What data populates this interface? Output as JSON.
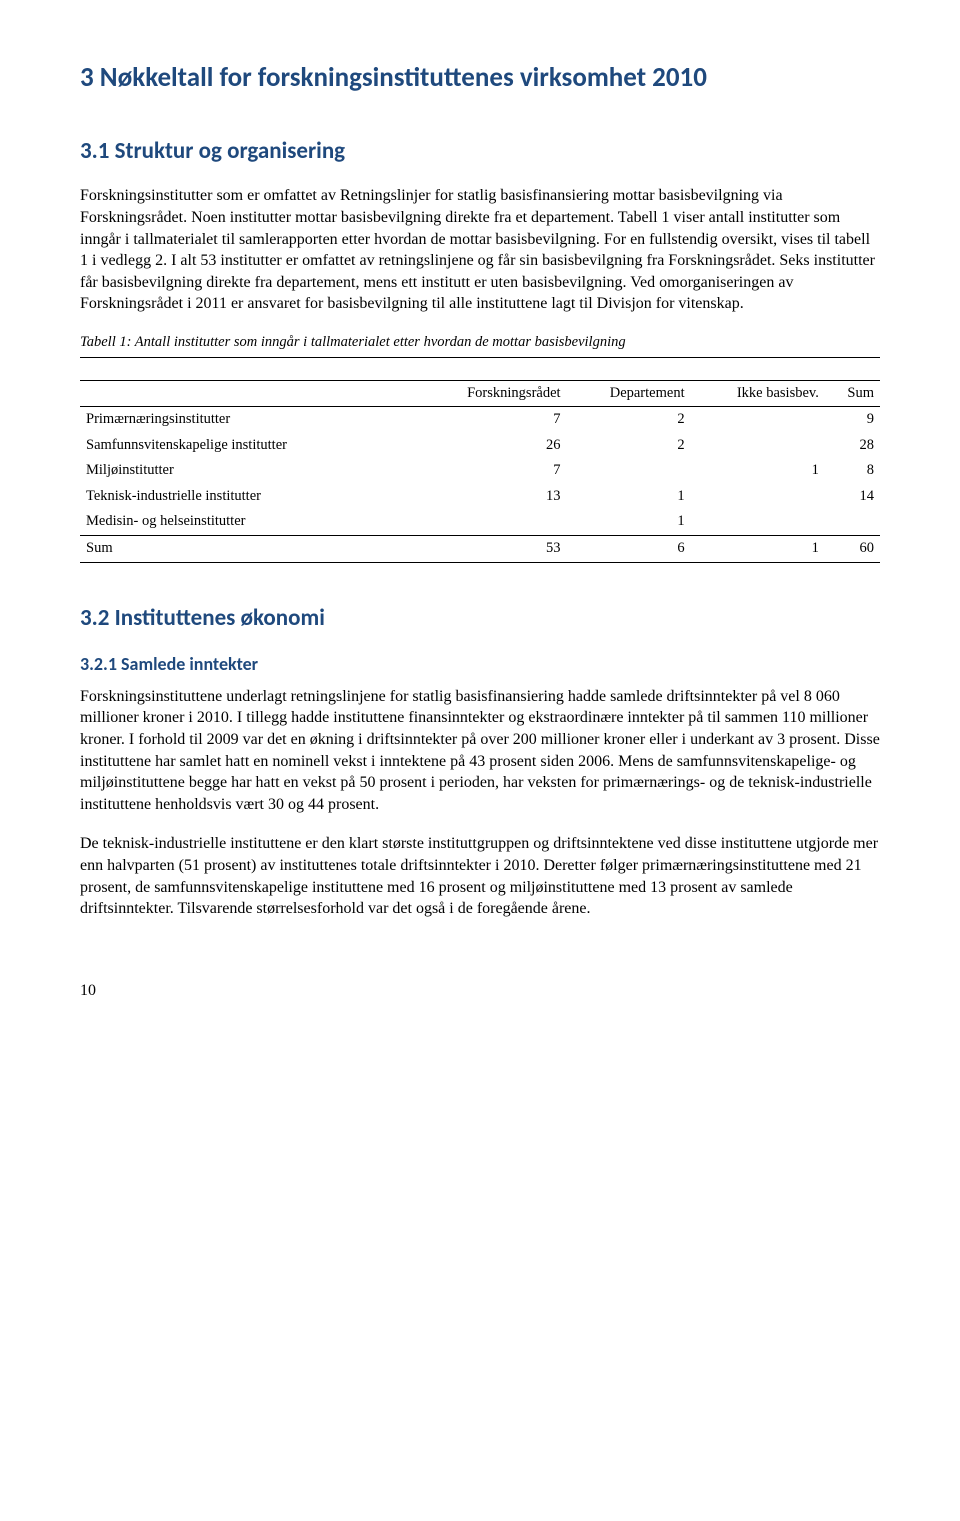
{
  "h1": "3   Nøkkeltall for forskningsinstituttenes virksomhet 2010",
  "h2_struktur": "3.1   Struktur og organisering",
  "para1": "Forskningsinstitutter som er omfattet av Retningslinjer for statlig basisfinansiering mottar basisbevilgning via Forskningsrådet. Noen institutter mottar basisbevilgning direkte fra et departement. Tabell 1 viser antall institutter som inngår i tallmaterialet til samlerapporten etter hvordan de mottar basisbevilgning. For en fullstendig oversikt, vises til tabell 1 i vedlegg 2. I alt 53 institutter er omfattet av retningslinjene og får sin basisbevilgning fra Forskningsrådet. Seks institutter får basisbevilgning direkte fra departement, mens ett institutt er uten basisbevilgning. Ved omorganiseringen av Forskningsrådet i 2011 er ansvaret for basisbevilgning til alle instituttene lagt til Divisjon for vitenskap.",
  "table1": {
    "caption": "Tabell 1: Antall institutter som inngår i tallmaterialet etter hvordan de mottar basisbevilgning",
    "columns": [
      "",
      "Forskningsrådet",
      "Departement",
      "Ikke basisbev.",
      "Sum"
    ],
    "rows": [
      {
        "label": "Primærnæringsinstitutter",
        "values": [
          "7",
          "2",
          "",
          "9"
        ],
        "class": ""
      },
      {
        "label": "Samfunnsvitenskapelige institutter",
        "values": [
          "26",
          "2",
          "",
          "28"
        ],
        "class": ""
      },
      {
        "label": "Miljøinstitutter",
        "values": [
          "7",
          "",
          "1",
          "8"
        ],
        "class": ""
      },
      {
        "label": "Teknisk-industrielle institutter",
        "values": [
          "13",
          "1",
          "",
          "14"
        ],
        "class": ""
      },
      {
        "label": "Medisin- og helseinstitutter",
        "values": [
          "",
          "1",
          "",
          ""
        ],
        "class": "medisin"
      },
      {
        "label": "Sum",
        "values": [
          "53",
          "6",
          "1",
          "60"
        ],
        "class": "sum"
      }
    ]
  },
  "h2_okonomi": "3.2   Instituttenes økonomi",
  "h3_inntekter": "3.2.1  Samlede inntekter",
  "para2": "Forskningsinstituttene underlagt retningslinjene for statlig basisfinansiering hadde samlede driftsinntekter på vel 8 060 millioner kroner i 2010. I tillegg hadde instituttene finansinntekter og ekstraordinære inntekter på til sammen 110 millioner kroner. I forhold til 2009 var det en økning i driftsinntekter på over 200 millioner kroner eller i underkant av 3 prosent. Disse instituttene har samlet hatt en nominell vekst i inntektene på 43 prosent siden 2006. Mens de samfunnsvitenskapelige- og miljøinstituttene begge har hatt en vekst på 50 prosent i perioden, har veksten for primærnærings- og de teknisk-industrielle instituttene henholdsvis vært 30 og 44 prosent.",
  "para3": "De teknisk-industrielle instituttene er den klart største instituttgruppen og driftsinntektene ved disse instituttene utgjorde mer enn halvparten (51 prosent) av instituttenes totale driftsinntekter i 2010. Deretter følger primærnæringsinstituttene med 21 prosent, de samfunnsvitenskapelige instituttene med 16 prosent og miljøinstituttene med 13 prosent av samlede driftsinntekter. Tilsvarende størrelsesforhold var det også i de foregående årene.",
  "page_number": "10"
}
